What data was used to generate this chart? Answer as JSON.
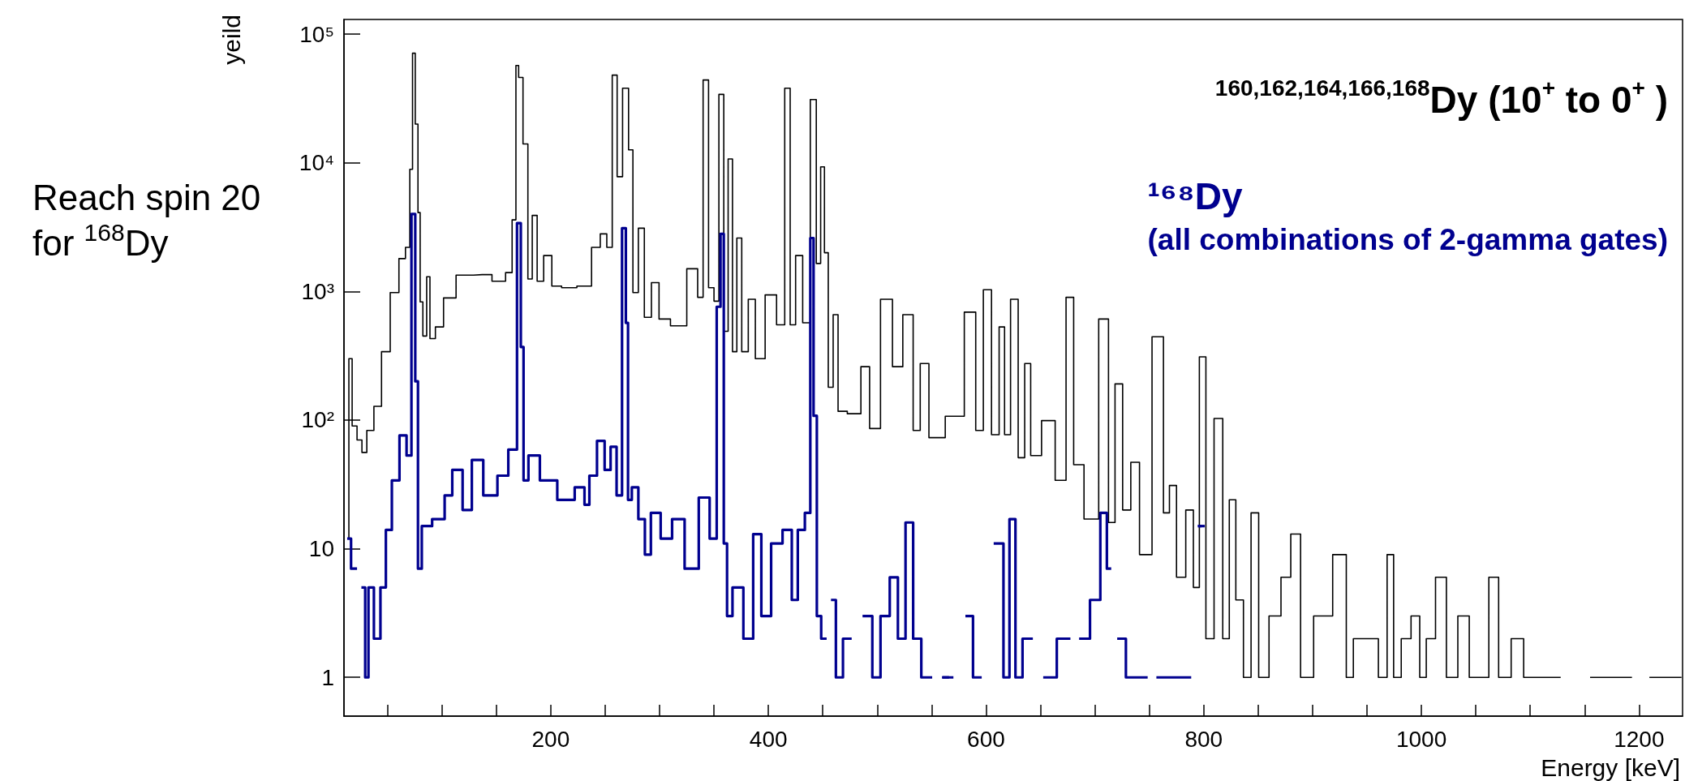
{
  "chart_data": {
    "type": "step",
    "xlabel": "Energy [keV]",
    "ylabel": "yeild",
    "annotations": [
      "Reach spin 20\nfor $^{168}$Dy"
    ],
    "legend": "top right",
    "log": "y",
    "grid": false,
    "xlim": [
      10,
      1240
    ],
    "xticks": [
      {
        "value": 50,
        "label": null
      },
      {
        "value": 100,
        "label": null
      },
      {
        "value": 150,
        "label": null
      },
      200,
      {
        "value": 250,
        "label": null
      },
      {
        "value": 300,
        "label": null
      },
      {
        "value": 350,
        "label": null
      },
      400,
      {
        "value": 450,
        "label": null
      },
      {
        "value": 500,
        "label": null
      },
      {
        "value": 550,
        "label": null
      },
      600,
      {
        "value": 650,
        "label": null
      },
      {
        "value": 700,
        "label": null
      },
      {
        "value": 750,
        "label": null
      },
      800,
      {
        "value": 850,
        "label": null
      },
      {
        "value": 900,
        "label": null
      },
      {
        "value": 950,
        "label": null
      },
      1000,
      {
        "value": 1050,
        "label": null
      },
      {
        "value": 1100,
        "label": null
      },
      {
        "value": 1150,
        "label": null
      },
      1200
    ],
    "ylim": [
      0.5,
      130000
    ],
    "yticks": [
      1,
      10,
      {
        "value": 100,
        "label": "10²"
      },
      {
        "value": 1000,
        "label": "10³"
      },
      {
        "value": 10000,
        "label": "10⁴"
      },
      {
        "value": 100000,
        "label": "10⁵"
      }
    ],
    "series": [
      {
        "name": "$^{160,162,164,166,168}$Dy (10$^{+}$ to 0$^{+}$ )",
        "color": "#000000",
        "x": [
          13,
          16,
          19,
          25,
          28,
          34,
          41,
          48,
          57,
          64,
          69,
          72,
          74,
          77,
          79,
          81,
          84,
          88,
          90,
          98,
          105,
          121,
          137,
          155,
          162,
          167,
          169,
          172,
          177,
          181,
          185,
          190,
          197,
          205,
          215,
          233,
          242,
          249,
          254,
          259,
          263,
          269,
          274,
          277,
          284,
          288,
          297,
          302,
          318,
          332,
          338,
          342,
          348,
          352,
          357,
          361,
          365,
          369,
          373,
          378,
          385,
          391,
          403,
          412,
          418,
          422,
          428,
          435,
          442,
          446,
          450,
          453,
          457,
          462,
          466,
          479,
          491,
          495,
          511,
          517,
          530,
          536,
          543,
          552,
          573,
          587,
          594,
          601,
          609,
          615,
          619,
          626,
          633,
          638,
          644,
          658,
          669,
          678,
          683,
          697,
          710,
          715,
          722,
          729,
          737,
          745,
          760,
          766,
          771,
          779,
          788,
          793,
          799,
          805,
          814,
          821,
          826,
          833,
          840,
          847,
          854,
          866,
          876,
          884,
          894,
          908,
          929,
          933,
          942,
          956,
          965,
          972,
          977,
          986,
          995,
          1002,
          1007,
          1019,
          1027,
          1040,
          1048,
          1057,
          1067,
          1075,
          1090,
          1098,
          1121,
          1135,
          1175,
          1186,
          1201,
          1218,
          1239
        ],
        "values": [
          12,
          300,
          90,
          70,
          56,
          83,
          128,
          340,
          980,
          1800,
          2200,
          8900,
          71000,
          20000,
          4100,
          830,
          450,
          1300,
          430,
          530,
          890,
          1340,
          1350,
          1200,
          1400,
          3600,
          57000,
          46000,
          14000,
          1250,
          3900,
          1200,
          1900,
          1100,
          1070,
          1100,
          2200,
          2800,
          2200,
          48000,
          7800,
          38000,
          12600,
          980,
          3100,
          630,
          1170,
          610,
          540,
          1500,
          900,
          44000,
          1070,
          840,
          34000,
          490,
          10700,
          340,
          2600,
          340,
          870,
          300,
          940,
          550,
          38000,
          550,
          1900,
          570,
          31000,
          1650,
          9300,
          2000,
          180,
          660,
          117,
          112,
          260,
          86,
          870,
          260,
          660,
          83,
          275,
          73,
          107,
          690,
          83,
          1030,
          77,
          530,
          77,
          870,
          51,
          275,
          53,
          99,
          34,
          900,
          45,
          17,
          610,
          16,
          191,
          20,
          47,
          9,
          444,
          19,
          31,
          6,
          20,
          5,
          310,
          2,
          103,
          2,
          24,
          4,
          1,
          19,
          1,
          3,
          6,
          13,
          1,
          3,
          9,
          1,
          2,
          2,
          1,
          9,
          1,
          2,
          3,
          1,
          2,
          6,
          1,
          3,
          1,
          1,
          6,
          1,
          2,
          1,
          1,
          null,
          1,
          1,
          null,
          1,
          1
        ]
      },
      {
        "name": "¹⁶⁸Dy\n(all combinations of 2-gamma gates)",
        "color": "#00008f",
        "x": [
          13,
          20,
          24,
          28,
          31,
          34,
          41,
          46,
          51,
          57,
          65,
          70,
          74,
          77,
          79,
          84,
          98,
          107,
          112,
          126,
          129,
          147,
          155,
          167,
          171,
          174,
          176,
          183,
          197,
          215,
          229,
          233,
          238,
          247,
          252,
          258,
          263,
          268,
          270,
          272,
          277,
          284,
          289,
          295,
          307,
          316,
          330,
          342,
          350,
          355,
          357,
          361,
          363,
          371,
          383,
          389,
          398,
          407,
          419,
          424,
          430,
          437,
          440,
          443,
          446,
          451,
          456,
          459,
          465,
          472,
          481,
          492,
          499,
          507,
          516,
          522,
          530,
          536,
          545,
          556,
          563,
          577,
          585,
          591,
          601,
          613,
          619,
          624,
          630,
          637,
          649,
          656,
          674,
          681,
          690,
          701,
          709,
          713,
          717,
          724,
          733,
          745,
          752,
          761,
          775,
          786,
          791,
          798
        ],
        "values": [
          12,
          7,
          null,
          5,
          1,
          5,
          2,
          5,
          14,
          34,
          76,
          53,
          4000,
          200,
          7,
          15,
          17,
          26,
          41,
          20,
          49,
          26,
          37,
          59,
          3400,
          370,
          34,
          53,
          34,
          24,
          30,
          22,
          37,
          69,
          41,
          62,
          26,
          3100,
          570,
          24,
          30,
          17,
          9,
          19,
          12,
          17,
          7,
          25,
          12,
          760,
          2800,
          11,
          3,
          5,
          2,
          13,
          3,
          11,
          14,
          4,
          14,
          19,
          2600,
          108,
          3,
          2,
          null,
          4,
          1,
          2,
          null,
          3,
          1,
          3,
          6,
          2,
          16,
          2,
          1,
          null,
          1,
          null,
          3,
          1,
          null,
          11,
          1,
          17,
          1,
          2,
          null,
          1,
          2,
          null,
          2,
          4,
          19,
          7,
          null,
          2,
          1,
          1,
          null,
          1,
          1,
          1,
          null,
          15
        ]
      }
    ]
  }
}
